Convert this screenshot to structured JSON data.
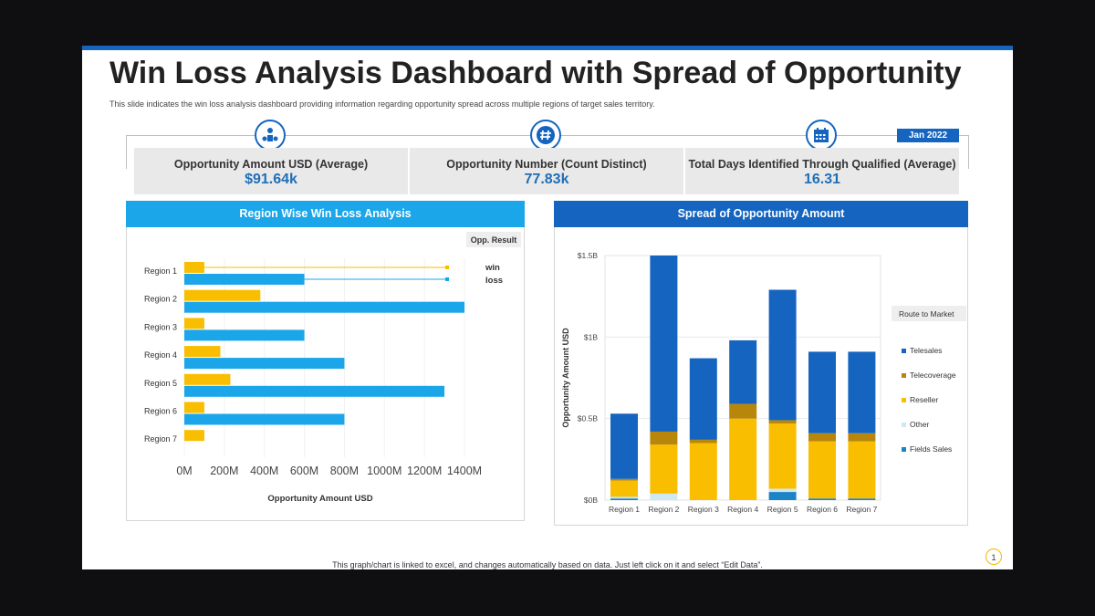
{
  "slide": {
    "title": "Win Loss Analysis Dashboard with Spread of Opportunity",
    "subtitle": "This slide indicates the win loss analysis dashboard providing information regarding opportunity spread across multiple regions of target sales territory.",
    "date_badge": "Jan 2022",
    "footer_note": "This graph/chart is linked to excel, and changes automatically based on data. Just left click on it and select “Edit Data”.",
    "page_number": "1"
  },
  "kpis": [
    {
      "label": "Opportunity Amount  USD (Average)",
      "value": "$91.64k",
      "icon": "money-group-icon"
    },
    {
      "label": "Opportunity Number (Count Distinct)",
      "value": "77.83k",
      "icon": "hashtag-icon"
    },
    {
      "label": "Total Days Identified Through Qualified (Average)",
      "value": "16.31",
      "icon": "calendar-icon"
    }
  ],
  "colors": {
    "accent_blue": "#1565c0",
    "light_blue": "#1ca6ea",
    "win_yellow": "#f9be00",
    "telesales": "#1565c0",
    "telecoverage": "#b8860b",
    "reseller": "#f9be00",
    "other": "#cfe8f3",
    "fields_sales": "#1a84c6"
  },
  "chart_data": [
    {
      "type": "bar",
      "orientation": "horizontal",
      "title": "Region Wise Win Loss Analysis",
      "legend_title": "Opp. Result",
      "legend_placement": "right",
      "categories": [
        "Region 1",
        "Region 2",
        "Region 3",
        "Region 4",
        "Region 5",
        "Region 6",
        "Region 7"
      ],
      "series": [
        {
          "name": "win",
          "values": [
            100,
            380,
            100,
            180,
            230,
            100,
            100
          ]
        },
        {
          "name": "loss",
          "values": [
            600,
            1400,
            600,
            800,
            1300,
            800,
            0
          ]
        }
      ],
      "xlabel": "Opportunity  Amount  USD",
      "x_ticks": [
        "0M",
        "200M",
        "400M",
        "600M",
        "800M",
        "1000M",
        "1200M",
        "1400M"
      ],
      "xlim": [
        0,
        1400
      ],
      "grid": true
    },
    {
      "type": "bar",
      "stacked": true,
      "title": "Spread of Opportunity Amount",
      "legend_title": "Route to Market",
      "legend_placement": "right",
      "categories": [
        "Region 1",
        "Region 2",
        "Region 3",
        "Region 4",
        "Region 5",
        "Region 6",
        "Region 7"
      ],
      "series": [
        {
          "name": "Fields Sales",
          "values": [
            0.01,
            0.0,
            0.0,
            0.0,
            0.05,
            0.01,
            0.01
          ]
        },
        {
          "name": "Other",
          "values": [
            0.01,
            0.04,
            0.0,
            0.0,
            0.02,
            0.0,
            0.0
          ]
        },
        {
          "name": "Reseller",
          "values": [
            0.1,
            0.3,
            0.35,
            0.5,
            0.4,
            0.35,
            0.35
          ]
        },
        {
          "name": "Telecoverage",
          "values": [
            0.01,
            0.08,
            0.02,
            0.09,
            0.02,
            0.05,
            0.05
          ]
        },
        {
          "name": "Telesales",
          "values": [
            0.4,
            1.08,
            0.5,
            0.39,
            0.8,
            0.5,
            0.5
          ]
        }
      ],
      "legend_order": [
        "Telesales",
        "Telecoverage",
        "Reseller",
        "Other",
        "Fields Sales"
      ],
      "ylabel": "Opportunity Amount USD",
      "y_ticks": [
        "$0B",
        "$0.5B",
        "$1B",
        "$1.5B"
      ],
      "ylim": [
        0,
        1.5
      ],
      "grid": true
    }
  ]
}
